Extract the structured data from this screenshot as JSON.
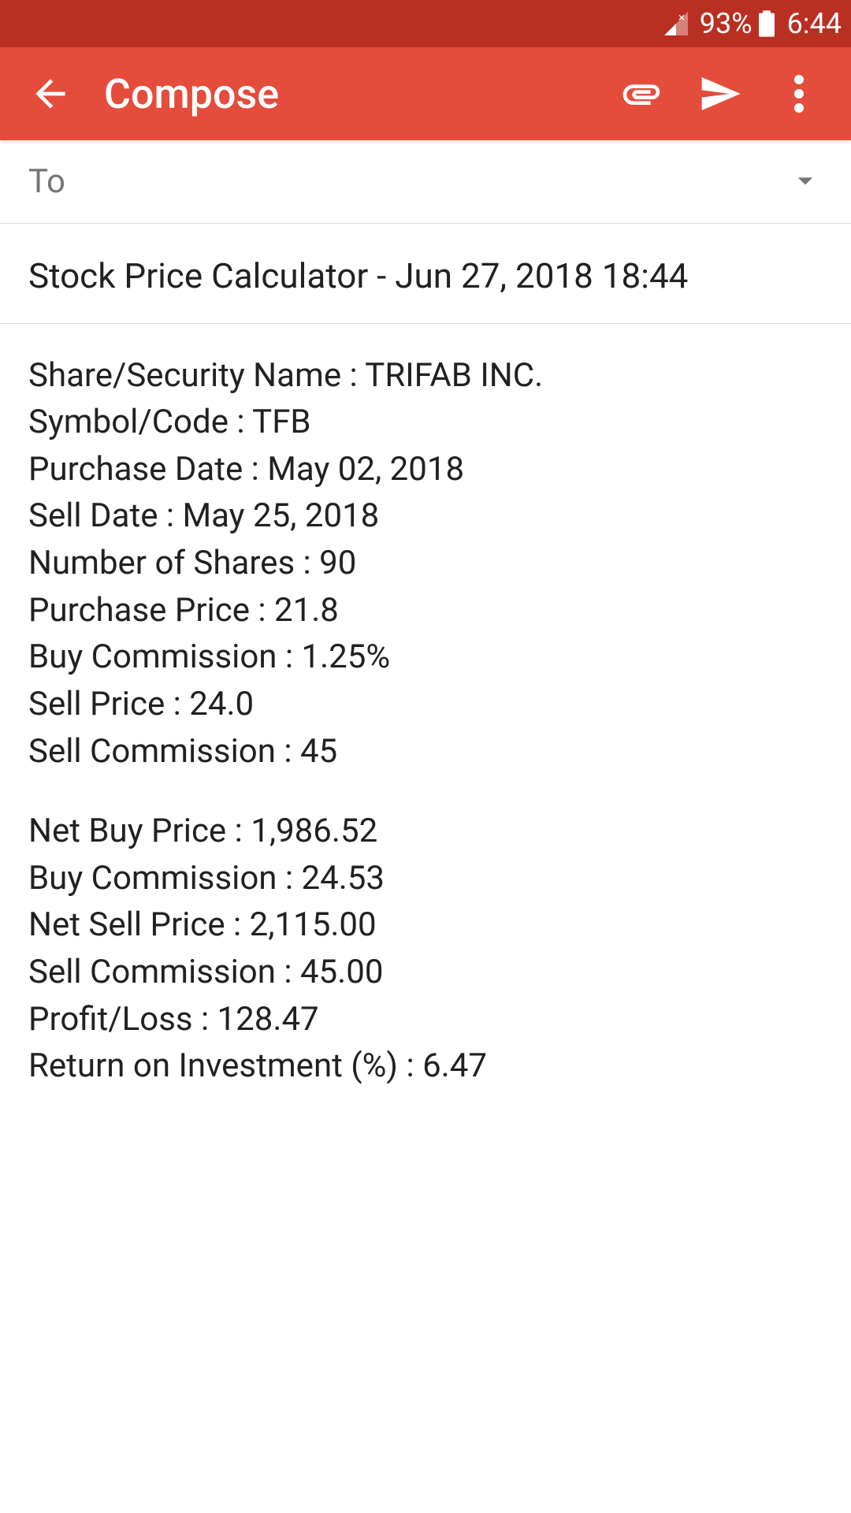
{
  "status_bar": {
    "battery_percent": "93%",
    "time": "6:44"
  },
  "app_bar": {
    "title": "Compose"
  },
  "to_field": {
    "label": "To"
  },
  "subject": "Stock Price Calculator - Jun 27, 2018 18:44",
  "body": {
    "block1": [
      "Share/Security Name : TRIFAB INC.",
      "Symbol/Code : TFB",
      "Purchase Date : May 02, 2018",
      "Sell Date : May 25, 2018",
      "Number of Shares : 90",
      "Purchase Price : 21.8",
      "Buy Commission : 1.25%",
      "Sell Price : 24.0",
      "Sell Commission : 45"
    ],
    "block2": [
      "Net Buy Price : 1,986.52",
      "Buy Commission : 24.53",
      "Net Sell Price : 2,115.00",
      "Sell Commission : 45.00",
      "Profit/Loss : 128.47",
      "Return on Investment (%) : 6.47"
    ]
  },
  "colors": {
    "status_bar_bg": "#b93023",
    "app_bar_bg": "#e44c3c",
    "text_primary": "#212121",
    "text_secondary": "#757575",
    "white": "#ffffff",
    "divider": "#e0e0e0"
  }
}
